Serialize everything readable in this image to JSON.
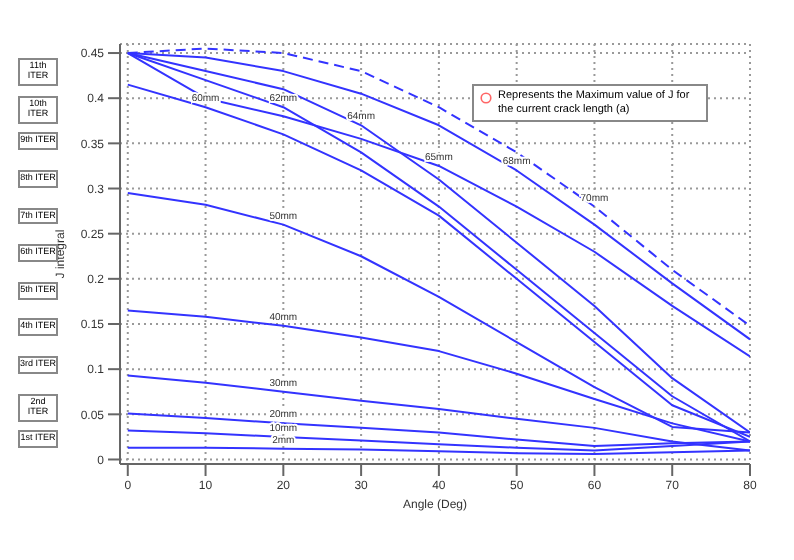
{
  "chart_data": {
    "type": "line",
    "xlabel": "Angle (Deg)",
    "ylabel": "J integral",
    "x": [
      0,
      10,
      20,
      30,
      40,
      50,
      60,
      70,
      80
    ],
    "series": [
      {
        "name": "2mm",
        "color": "#3333ff",
        "values": [
          0.013,
          0.013,
          0.012,
          0.011,
          0.009,
          0.007,
          0.006,
          0.008,
          0.01
        ]
      },
      {
        "name": "10mm",
        "color": "#3333ff",
        "values": [
          0.032,
          0.029,
          0.025,
          0.021,
          0.017,
          0.013,
          0.01,
          0.015,
          0.02
        ]
      },
      {
        "name": "20mm",
        "color": "#3333ff",
        "values": [
          0.051,
          0.046,
          0.04,
          0.035,
          0.03,
          0.022,
          0.015,
          0.018,
          0.02
        ]
      },
      {
        "name": "30mm",
        "color": "#3333ff",
        "values": [
          0.093,
          0.085,
          0.075,
          0.065,
          0.056,
          0.045,
          0.035,
          0.02,
          0.01
        ]
      },
      {
        "name": "40mm",
        "color": "#3333ff",
        "values": [
          0.165,
          0.158,
          0.148,
          0.135,
          0.12,
          0.095,
          0.067,
          0.04,
          0.02
        ]
      },
      {
        "name": "50mm",
        "color": "#3333ff",
        "values": [
          0.295,
          0.282,
          0.26,
          0.225,
          0.18,
          0.13,
          0.08,
          0.036,
          0.03
        ]
      },
      {
        "name": "60mm",
        "color": "#3333ff",
        "values": [
          0.415,
          0.39,
          0.36,
          0.32,
          0.27,
          0.2,
          0.13,
          0.06,
          0.025
        ]
      },
      {
        "name": "62mm",
        "color": "#3333ff",
        "values": [
          0.45,
          0.42,
          0.39,
          0.34,
          0.28,
          0.21,
          0.14,
          0.07,
          0.02
        ]
      },
      {
        "name": "64mm",
        "color": "#3333ff",
        "values": [
          0.45,
          0.43,
          0.41,
          0.37,
          0.31,
          0.24,
          0.17,
          0.09,
          0.03
        ]
      },
      {
        "name": "65mm",
        "color": "#3333ff",
        "values": [
          0.45,
          0.4,
          0.38,
          0.355,
          0.325,
          0.28,
          0.23,
          0.17,
          0.114
        ]
      },
      {
        "name": "68mm",
        "color": "#3333ff",
        "values": [
          0.45,
          0.445,
          0.43,
          0.405,
          0.37,
          0.32,
          0.26,
          0.195,
          0.133
        ]
      },
      {
        "name": "70mm",
        "color": "#3333ff",
        "line_style": "dashed",
        "values": [
          0.45,
          0.455,
          0.45,
          0.43,
          0.39,
          0.34,
          0.28,
          0.21,
          0.148
        ]
      }
    ],
    "xlim": [
      -1,
      80
    ],
    "xticks": [
      0,
      10,
      20,
      30,
      40,
      50,
      60,
      70,
      80
    ],
    "ylim": [
      -0.005,
      0.46
    ],
    "yticks": [
      0,
      0.05,
      0.1,
      0.15,
      0.2,
      0.25,
      0.3,
      0.35,
      0.4,
      0.45
    ],
    "grid": true,
    "marker": "none",
    "legend": false,
    "annotations": [
      "Represents the Maximum value of J for the current crack length (a)",
      "1st ITER",
      "2nd ITER",
      "3rd ITER",
      "4th ITER",
      "5th ITER",
      "6th ITER",
      "7th ITER",
      "8th ITER",
      "9th ITER",
      "10th ITER",
      "11th ITER"
    ]
  }
}
